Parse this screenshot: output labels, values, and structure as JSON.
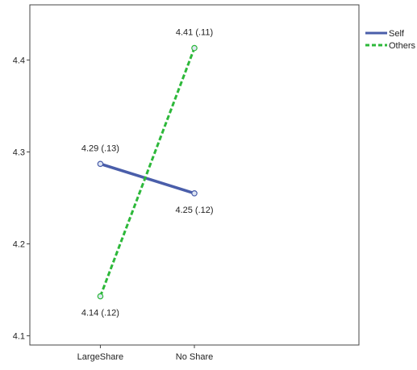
{
  "chart_data": {
    "type": "line",
    "title": "",
    "xlabel": "",
    "ylabel": "",
    "categories": [
      "LargeShare",
      "No Share"
    ],
    "ylim": [
      4.09,
      4.46
    ],
    "yticks": [
      "4.1",
      "4.2",
      "4.3",
      "4.4"
    ],
    "grid": false,
    "legend_position": "top-right",
    "series": [
      {
        "name": "Self",
        "values": [
          4.287,
          4.255
        ],
        "labels": [
          "4.29 (.13)",
          "4.25 (.12)"
        ],
        "label_positions": [
          "above",
          "below"
        ],
        "color": "#4A5EAA",
        "line_style": "solid"
      },
      {
        "name": "Others",
        "values": [
          4.143,
          4.413
        ],
        "labels": [
          "4.14 (.12)",
          "4.41 (.11)"
        ],
        "label_positions": [
          "below",
          "above"
        ],
        "color": "#2DB83A",
        "line_style": "dashed"
      }
    ]
  }
}
